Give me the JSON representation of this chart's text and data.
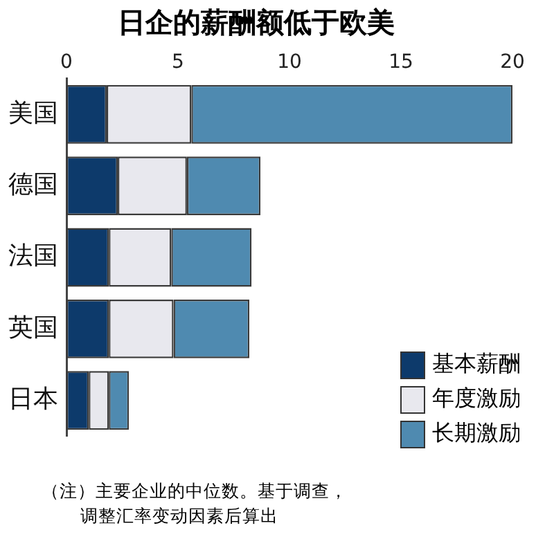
{
  "chart_data": {
    "type": "bar",
    "orientation": "horizontal",
    "stacked": true,
    "title": "日企的薪酬额低于欧美",
    "categories": [
      "美国",
      "德国",
      "法国",
      "英国",
      "日本"
    ],
    "series": [
      {
        "name": "基本薪酬",
        "color": "#0d3a6b",
        "values": [
          1.8,
          2.3,
          1.9,
          1.9,
          1.0
        ]
      },
      {
        "name": "年度激励",
        "color": "#e8e8ee",
        "values": [
          3.8,
          3.1,
          2.8,
          2.9,
          0.9
        ]
      },
      {
        "name": "长期激励",
        "color": "#4f8ab0",
        "values": [
          14.4,
          3.3,
          3.6,
          3.4,
          0.9
        ]
      }
    ],
    "xlim": [
      0,
      20
    ],
    "xticks": [
      0,
      5,
      10,
      15,
      20
    ],
    "grid": false,
    "legend": "bottom right",
    "annotations": [
      "（注）主要企业的中位数。基于调查，",
      "调整汇率变动因素后算出"
    ]
  }
}
